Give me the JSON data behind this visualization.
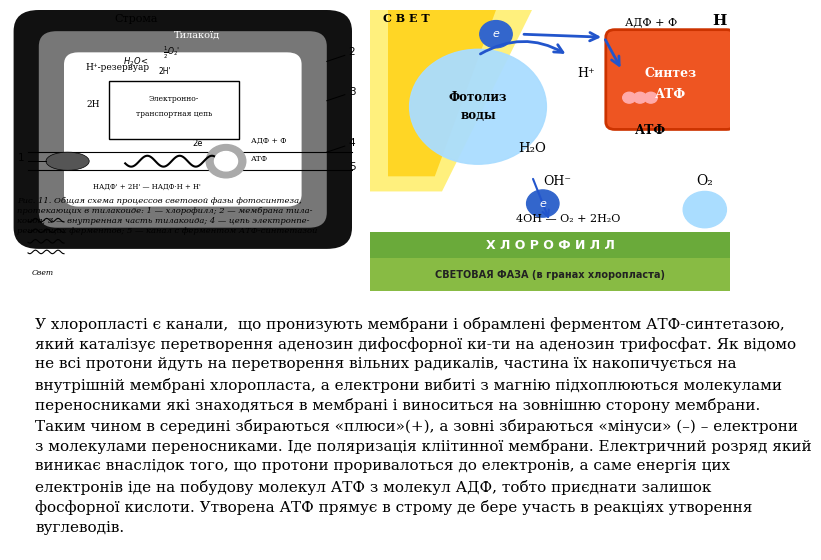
{
  "background_color": "#ffffff",
  "left_diagram_label": "Строма",
  "left_diagram_thylakoid": "Тилакоїд",
  "left_diagram_reservoir": "Н⁺-резервуар",
  "left_diagram_caption": "Рис. 11. Общая схема процессов световой фазы фотосинтеза,\nпротекающих в тилакоиде: 1 — хлорофилл; 2 — мембрана тила-\nкоида; 3 — внутренная часть тилакоида; 4 — цепь электронпе-\nреносящих ферментов; 5 — канал с ферментом АТФ-синтетазой",
  "right_diagram_light": "С В Е Т",
  "right_diagram_photolysis": "Фотолиз\nводы",
  "right_diagram_synthesis": "Синтез\nАТФ",
  "right_diagram_adf": "АДФ + Ф",
  "right_diagram_atf": "АТФ",
  "right_diagram_h2o": "Н₂О",
  "right_diagram_oh": "ОН⁻",
  "right_diagram_h_plus": "Н⁺",
  "right_diagram_h": "Н",
  "right_diagram_o2": "О₂",
  "right_diagram_reaction": "4ОН — О₂ + 2Н₂О",
  "right_diagram_chlorophyll": "Х Л О Р О Ф И Л Л",
  "right_diagram_phase": "СВЕТОВАЯ ФАЗА (в гранах хлоропласта)",
  "right_bg_color": "#fffff0",
  "right_chlorophyll_bg": "#6aaa3a",
  "right_phase_bg": "#88bb44",
  "synthesis_bg": "#ee5522",
  "photolysis_bg": "#aaddff",
  "main_text_line1": "У хлоропласті є канали,  що пронизують мембрани і обрамлені ферментом АТФ-синтетазою,",
  "main_text_line2": "який каталізує перетворення аденозин дифосфорної ки-ти на аденозин трифосфат. Як відомо",
  "main_text_line3": "не всі протони йдуть на перетворення вільних радикалів, частина їх накопичується на",
  "main_text_line4": "внутрішній мембрані хлоропласта, а електрони вибиті з магнію підхоплюються молекулами",
  "main_text_line5": "переносниками які знаходяться в мембрані і виноситься на зовнішню сторону мембрани.",
  "main_text_line6": "Таким чином в середині збираються «плюси»(+), а зовні збираються «мінуси» (–) – електрони",
  "main_text_line7": "з молекулами переносниками. Іде поляризація кліітинної мембрани. Електричний розряд який",
  "main_text_line8": "виникає внаслідок того, що протони проривалоться до електронів, а саме енергія цих",
  "main_text_line9": "електронів іде на побудову молекул АТФ з молекул АДФ, тобто приєднати залишок",
  "main_text_line10": "фосфорної кислоти. Утворена АТФ прямує в строму де бере участь в реакціях утворення",
  "main_text_line11": "вуглеводів.",
  "text_fontsize": 11.0,
  "caption_fontsize": 6.0
}
